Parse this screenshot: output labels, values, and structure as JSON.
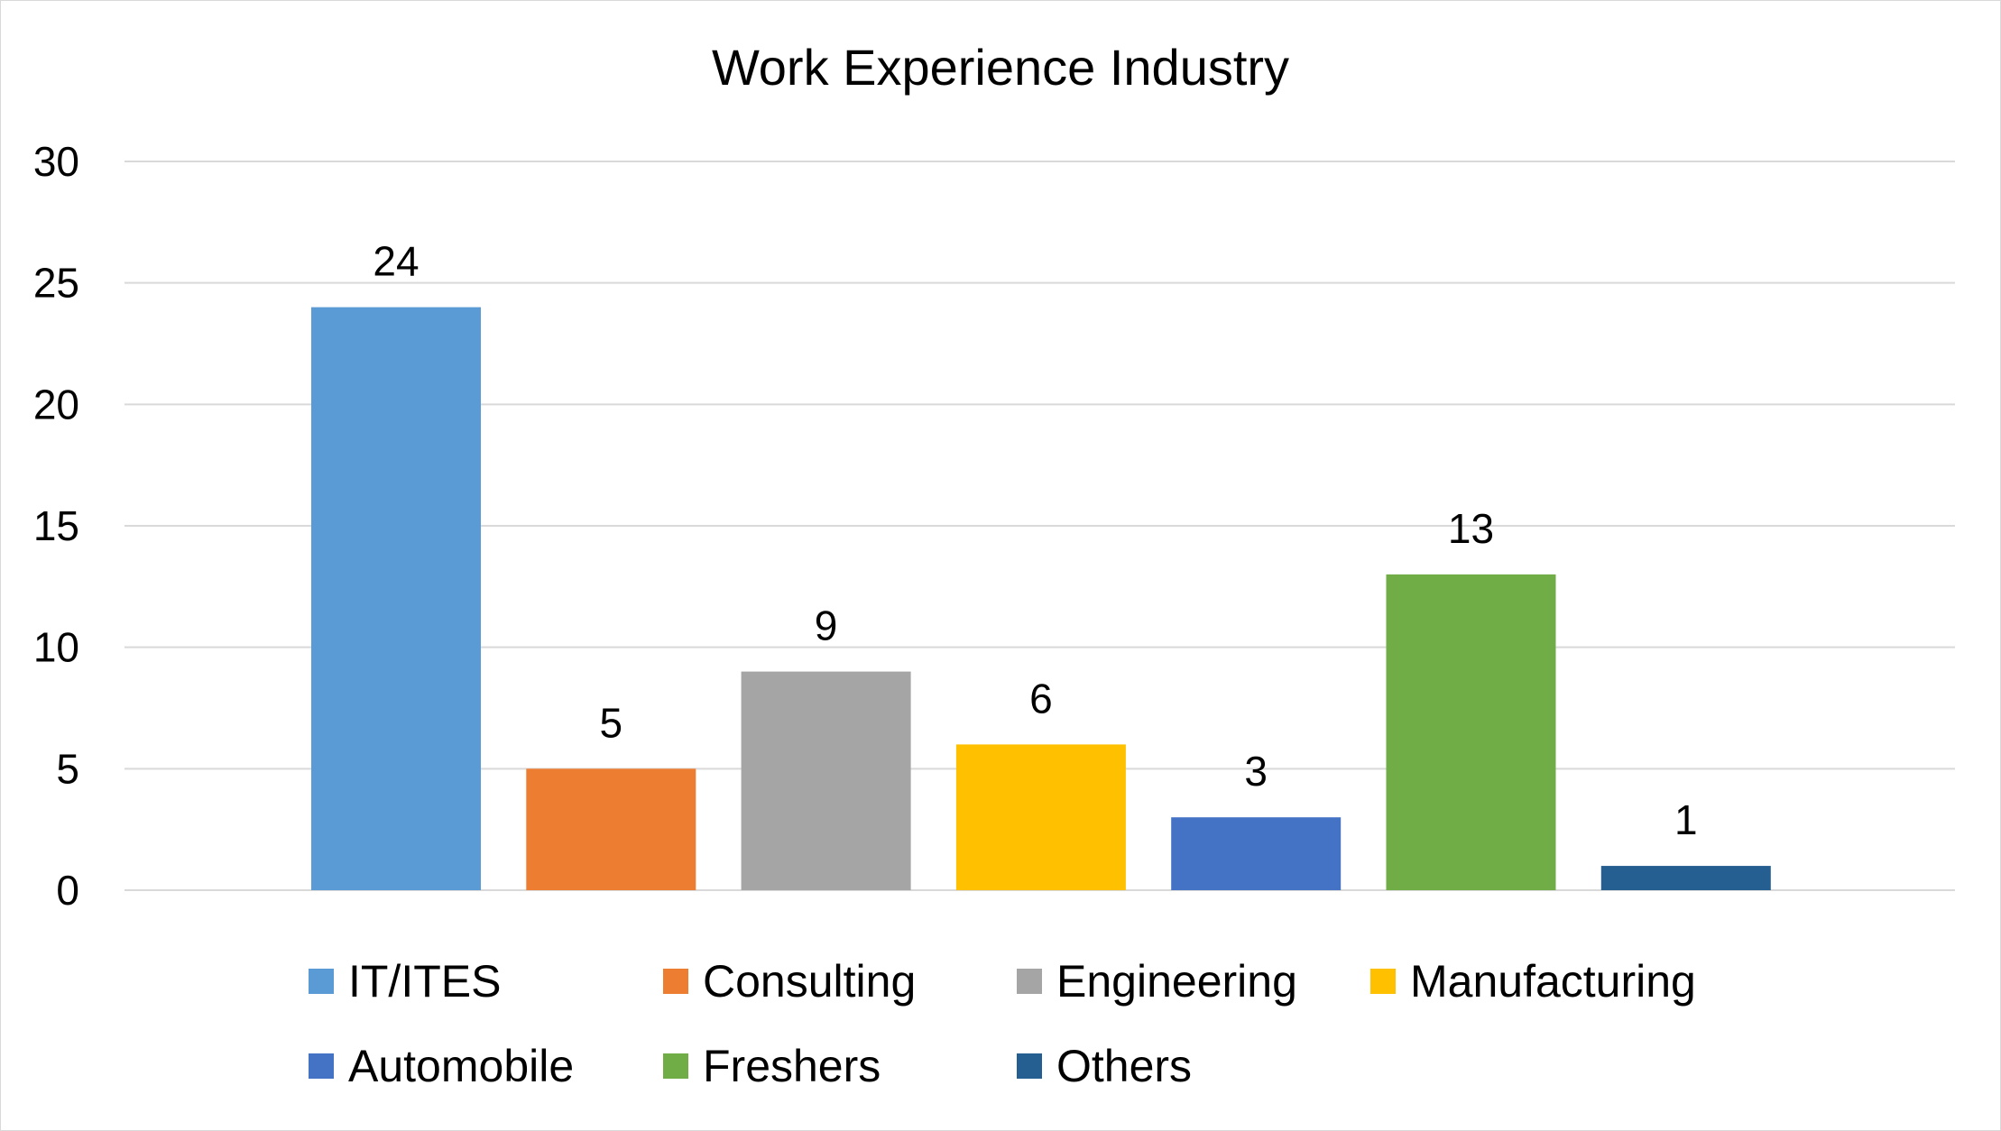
{
  "chart_data": {
    "type": "bar",
    "title": "Work Experience Industry",
    "xlabel": "",
    "ylabel": "",
    "ylim": [
      0,
      30
    ],
    "yticks": [
      0,
      5,
      10,
      15,
      20,
      25,
      30
    ],
    "grid": true,
    "legend_position": "bottom",
    "series": [
      {
        "name": "IT/ITES",
        "value": 24,
        "color": "#5B9BD5"
      },
      {
        "name": "Consulting",
        "value": 5,
        "color": "#ED7D31"
      },
      {
        "name": "Engineering",
        "value": 9,
        "color": "#A5A5A5"
      },
      {
        "name": "Manufacturing",
        "value": 6,
        "color": "#FFC000"
      },
      {
        "name": "Automobile",
        "value": 3,
        "color": "#4472C4"
      },
      {
        "name": "Freshers",
        "value": 13,
        "color": "#70AD47"
      },
      {
        "name": "Others",
        "value": 1,
        "color": "#255E91"
      }
    ]
  }
}
